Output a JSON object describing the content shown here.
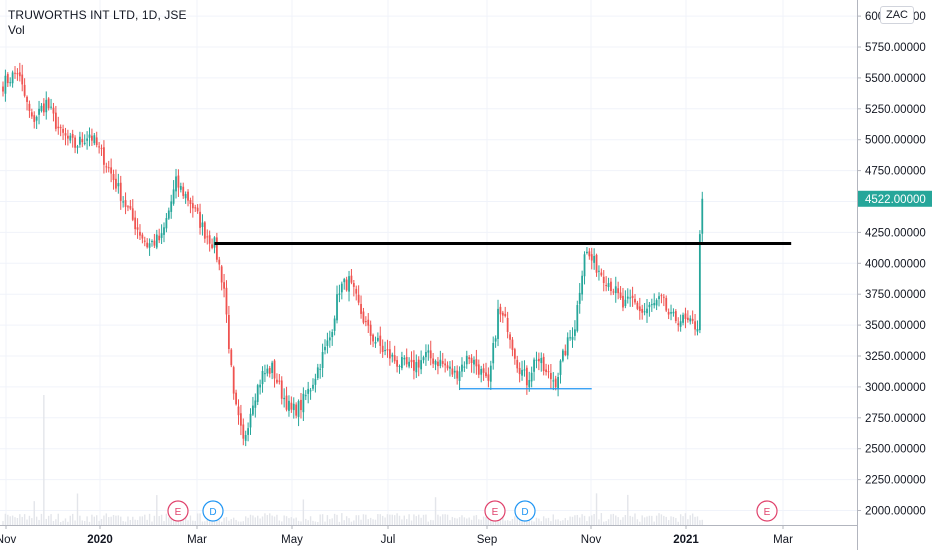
{
  "header": {
    "title": "TRUWORTHS INT LTD, 1D, JSE",
    "volume_label": "Vol",
    "currency_label": "ZAC"
  },
  "colors": {
    "up": "#26a69a",
    "down": "#ef5350",
    "price_badge": "#26a69a",
    "resistance_line": "#000000",
    "support_line": "#2196f3",
    "event_earnings": "#e0426c",
    "event_dividend": "#2196f3"
  },
  "chart_data": {
    "type": "candlestick",
    "title": "TRUWORTHS INT LTD, 1D, JSE",
    "y_axis": {
      "ticks": [
        "2000.00000",
        "2250.00000",
        "2500.00000",
        "2750.00000",
        "3000.00000",
        "3250.00000",
        "3500.00000",
        "3750.00000",
        "4000.00000",
        "4250.00000",
        "4500.00000",
        "4750.00000",
        "5000.00000",
        "5250.00000",
        "5500.00000",
        "5750.00000",
        "6000.00000"
      ],
      "ylim": [
        1950,
        6080
      ],
      "last_price": "4522.00000",
      "last_price_value": 4522,
      "grid": true
    },
    "x_axis": {
      "ticks": [
        {
          "label": "Nov",
          "bold": false
        },
        {
          "label": "2020",
          "bold": true
        },
        {
          "label": "Mar",
          "bold": false
        },
        {
          "label": "May",
          "bold": false
        },
        {
          "label": "Jul",
          "bold": false
        },
        {
          "label": "Sep",
          "bold": false
        },
        {
          "label": "Nov",
          "bold": false
        },
        {
          "label": "2021",
          "bold": true
        },
        {
          "label": "Mar",
          "bold": false
        }
      ]
    },
    "anchors": [
      [
        0,
        5450
      ],
      [
        6,
        5550
      ],
      [
        12,
        5150
      ],
      [
        18,
        5300
      ],
      [
        24,
        5050
      ],
      [
        30,
        4950
      ],
      [
        36,
        5050
      ],
      [
        42,
        4850
      ],
      [
        48,
        4600
      ],
      [
        54,
        4350
      ],
      [
        60,
        4150
      ],
      [
        66,
        4200
      ],
      [
        72,
        4650
      ],
      [
        78,
        4500
      ],
      [
        84,
        4250
      ],
      [
        88,
        4150
      ],
      [
        92,
        3800
      ],
      [
        96,
        2900
      ],
      [
        100,
        2550
      ],
      [
        104,
        2900
      ],
      [
        108,
        3100
      ],
      [
        112,
        3150
      ],
      [
        116,
        2950
      ],
      [
        120,
        2800
      ],
      [
        124,
        2850
      ],
      [
        128,
        3000
      ],
      [
        132,
        3200
      ],
      [
        136,
        3400
      ],
      [
        140,
        3800
      ],
      [
        144,
        3850
      ],
      [
        148,
        3650
      ],
      [
        152,
        3450
      ],
      [
        158,
        3300
      ],
      [
        164,
        3200
      ],
      [
        170,
        3150
      ],
      [
        176,
        3250
      ],
      [
        182,
        3200
      ],
      [
        188,
        3100
      ],
      [
        194,
        3250
      ],
      [
        198,
        3150
      ],
      [
        202,
        3000
      ],
      [
        206,
        3600
      ],
      [
        210,
        3500
      ],
      [
        214,
        3200
      ],
      [
        218,
        3050
      ],
      [
        222,
        3250
      ],
      [
        226,
        3100
      ],
      [
        230,
        3050
      ],
      [
        234,
        3300
      ],
      [
        238,
        3500
      ],
      [
        242,
        4100
      ],
      [
        246,
        4000
      ],
      [
        250,
        3900
      ],
      [
        254,
        3800
      ],
      [
        258,
        3650
      ],
      [
        262,
        3700
      ],
      [
        266,
        3600
      ],
      [
        270,
        3650
      ],
      [
        274,
        3700
      ],
      [
        278,
        3550
      ],
      [
        282,
        3550
      ],
      [
        286,
        3500
      ],
      [
        289,
        3500
      ],
      [
        290,
        4200
      ],
      [
        291,
        4522
      ]
    ],
    "volume_spike_days": [
      13,
      31,
      64,
      125,
      180,
      247,
      260
    ]
  },
  "lines": {
    "resistance": {
      "start_day": 88,
      "end_day": 328,
      "value": 4160
    },
    "support": {
      "start_day": 190,
      "end_day": 245,
      "value": 2985
    }
  },
  "events": [
    {
      "label": "E",
      "kind": "earnings"
    },
    {
      "label": "D",
      "kind": "dividend"
    },
    {
      "label": "E",
      "kind": "earnings"
    },
    {
      "label": "D",
      "kind": "dividend"
    },
    {
      "label": "E",
      "kind": "earnings"
    }
  ]
}
